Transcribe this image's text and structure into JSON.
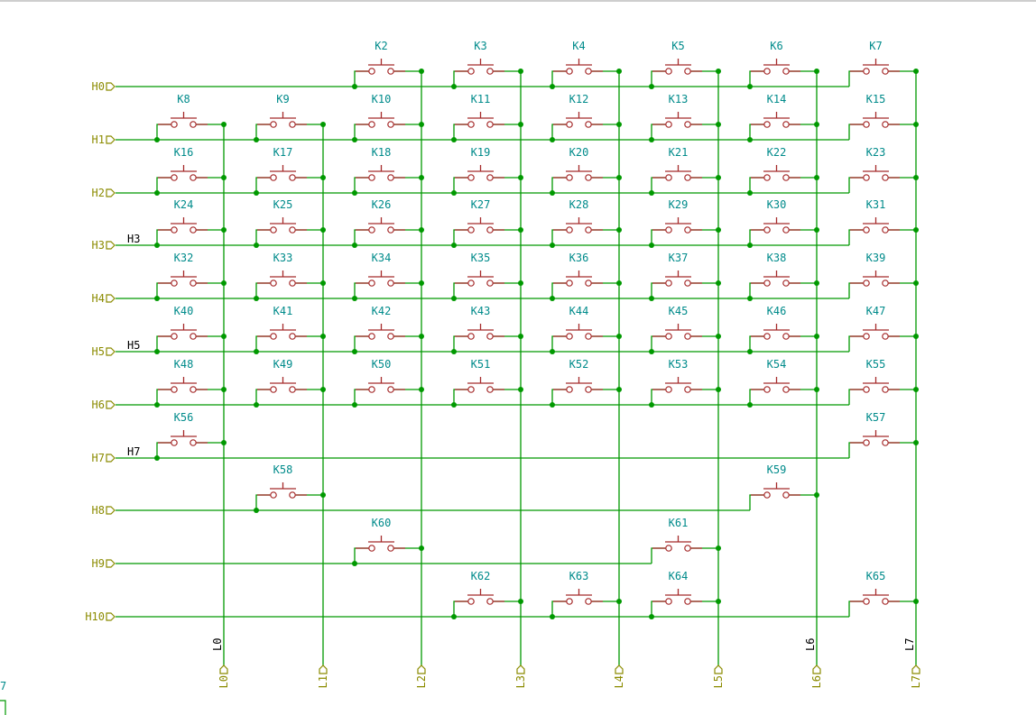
{
  "sheet": {
    "corner_text": "7"
  },
  "rows": [
    {
      "id": "H0",
      "label": "H0"
    },
    {
      "id": "H1",
      "label": "H1"
    },
    {
      "id": "H2",
      "label": "H2"
    },
    {
      "id": "H3",
      "label": "H3",
      "net_label": "H3"
    },
    {
      "id": "H4",
      "label": "H4"
    },
    {
      "id": "H5",
      "label": "H5",
      "net_label": "H5"
    },
    {
      "id": "H6",
      "label": "H6"
    },
    {
      "id": "H7",
      "label": "H7",
      "net_label": "H7"
    },
    {
      "id": "H8",
      "label": "H8"
    },
    {
      "id": "H9",
      "label": "H9"
    },
    {
      "id": "H10",
      "label": "H10"
    }
  ],
  "columns": [
    {
      "id": "L0",
      "label": "L0",
      "net_label": "L0"
    },
    {
      "id": "L1",
      "label": "L1"
    },
    {
      "id": "L2",
      "label": "L2"
    },
    {
      "id": "L3",
      "label": "L3"
    },
    {
      "id": "L4",
      "label": "L4"
    },
    {
      "id": "L5",
      "label": "L5"
    },
    {
      "id": "L6",
      "label": "L6",
      "net_label": "L6"
    },
    {
      "id": "L7",
      "label": "L7",
      "net_label": "L7"
    }
  ],
  "switches": [
    {
      "ref": "K2",
      "row": 0,
      "col": 2
    },
    {
      "ref": "K3",
      "row": 0,
      "col": 3
    },
    {
      "ref": "K4",
      "row": 0,
      "col": 4
    },
    {
      "ref": "K5",
      "row": 0,
      "col": 5
    },
    {
      "ref": "K6",
      "row": 0,
      "col": 6
    },
    {
      "ref": "K7",
      "row": 0,
      "col": 7
    },
    {
      "ref": "K8",
      "row": 1,
      "col": 0
    },
    {
      "ref": "K9",
      "row": 1,
      "col": 1
    },
    {
      "ref": "K10",
      "row": 1,
      "col": 2
    },
    {
      "ref": "K11",
      "row": 1,
      "col": 3
    },
    {
      "ref": "K12",
      "row": 1,
      "col": 4
    },
    {
      "ref": "K13",
      "row": 1,
      "col": 5
    },
    {
      "ref": "K14",
      "row": 1,
      "col": 6
    },
    {
      "ref": "K15",
      "row": 1,
      "col": 7
    },
    {
      "ref": "K16",
      "row": 2,
      "col": 0
    },
    {
      "ref": "K17",
      "row": 2,
      "col": 1
    },
    {
      "ref": "K18",
      "row": 2,
      "col": 2
    },
    {
      "ref": "K19",
      "row": 2,
      "col": 3
    },
    {
      "ref": "K20",
      "row": 2,
      "col": 4
    },
    {
      "ref": "K21",
      "row": 2,
      "col": 5
    },
    {
      "ref": "K22",
      "row": 2,
      "col": 6
    },
    {
      "ref": "K23",
      "row": 2,
      "col": 7
    },
    {
      "ref": "K24",
      "row": 3,
      "col": 0
    },
    {
      "ref": "K25",
      "row": 3,
      "col": 1
    },
    {
      "ref": "K26",
      "row": 3,
      "col": 2
    },
    {
      "ref": "K27",
      "row": 3,
      "col": 3
    },
    {
      "ref": "K28",
      "row": 3,
      "col": 4
    },
    {
      "ref": "K29",
      "row": 3,
      "col": 5
    },
    {
      "ref": "K30",
      "row": 3,
      "col": 6
    },
    {
      "ref": "K31",
      "row": 3,
      "col": 7
    },
    {
      "ref": "K32",
      "row": 4,
      "col": 0
    },
    {
      "ref": "K33",
      "row": 4,
      "col": 1
    },
    {
      "ref": "K34",
      "row": 4,
      "col": 2
    },
    {
      "ref": "K35",
      "row": 4,
      "col": 3
    },
    {
      "ref": "K36",
      "row": 4,
      "col": 4
    },
    {
      "ref": "K37",
      "row": 4,
      "col": 5
    },
    {
      "ref": "K38",
      "row": 4,
      "col": 6
    },
    {
      "ref": "K39",
      "row": 4,
      "col": 7
    },
    {
      "ref": "K40",
      "row": 5,
      "col": 0
    },
    {
      "ref": "K41",
      "row": 5,
      "col": 1
    },
    {
      "ref": "K42",
      "row": 5,
      "col": 2
    },
    {
      "ref": "K43",
      "row": 5,
      "col": 3
    },
    {
      "ref": "K44",
      "row": 5,
      "col": 4
    },
    {
      "ref": "K45",
      "row": 5,
      "col": 5
    },
    {
      "ref": "K46",
      "row": 5,
      "col": 6
    },
    {
      "ref": "K47",
      "row": 5,
      "col": 7
    },
    {
      "ref": "K48",
      "row": 6,
      "col": 0
    },
    {
      "ref": "K49",
      "row": 6,
      "col": 1
    },
    {
      "ref": "K50",
      "row": 6,
      "col": 2
    },
    {
      "ref": "K51",
      "row": 6,
      "col": 3
    },
    {
      "ref": "K52",
      "row": 6,
      "col": 4
    },
    {
      "ref": "K53",
      "row": 6,
      "col": 5
    },
    {
      "ref": "K54",
      "row": 6,
      "col": 6
    },
    {
      "ref": "K55",
      "row": 6,
      "col": 7
    },
    {
      "ref": "K56",
      "row": 7,
      "col": 0
    },
    {
      "ref": "K57",
      "row": 7,
      "col": 7
    },
    {
      "ref": "K58",
      "row": 8,
      "col": 1
    },
    {
      "ref": "K59",
      "row": 8,
      "col": 6
    },
    {
      "ref": "K60",
      "row": 9,
      "col": 2
    },
    {
      "ref": "K61",
      "row": 9,
      "col": 5
    },
    {
      "ref": "K62",
      "row": 10,
      "col": 3
    },
    {
      "ref": "K63",
      "row": 10,
      "col": 4
    },
    {
      "ref": "K64",
      "row": 10,
      "col": 5
    },
    {
      "ref": "K65",
      "row": 10,
      "col": 7
    }
  ],
  "colors": {
    "wire": "#009900",
    "switch": "#a52a2a",
    "reference": "#008b8b",
    "port": "#8b8b00",
    "net_label": "#000000"
  }
}
